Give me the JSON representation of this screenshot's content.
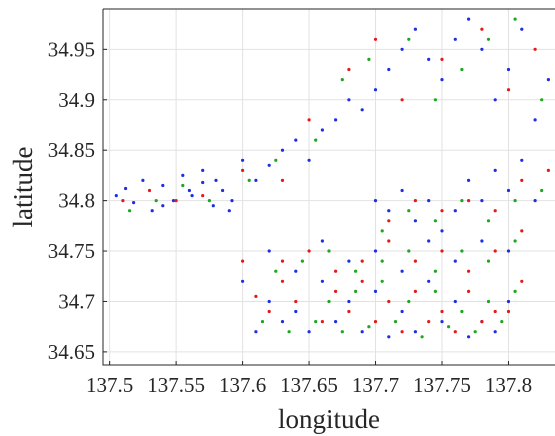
{
  "chart_data": {
    "type": "scatter",
    "title": "",
    "xlabel": "longitude",
    "ylabel": "latitude",
    "xlim": [
      137.495,
      137.835
    ],
    "ylim": [
      34.637,
      34.99
    ],
    "grid": true,
    "legend": "none",
    "x_ticks": [
      137.5,
      137.55,
      137.6,
      137.65,
      137.7,
      137.75,
      137.8
    ],
    "x_tick_labels": [
      "137.5",
      "137.55",
      "137.6",
      "137.65",
      "137.7",
      "137.75",
      "137.8"
    ],
    "y_ticks": [
      34.65,
      34.7,
      34.75,
      34.8,
      34.85,
      34.9,
      34.95
    ],
    "y_tick_labels": [
      "34.65",
      "34.7",
      "34.75",
      "34.8",
      "34.85",
      "34.9",
      "34.95"
    ],
    "series_colors": [
      "#1f2ee0",
      "#e31a1a",
      "#1fa51f"
    ],
    "series": [
      {
        "color": "#1f2ee0",
        "points": [
          [
            137.505,
            34.805
          ],
          [
            137.512,
            34.812
          ],
          [
            137.518,
            34.798
          ],
          [
            137.525,
            34.82
          ],
          [
            137.532,
            34.79
          ],
          [
            137.54,
            34.815
          ],
          [
            137.548,
            34.8
          ],
          [
            137.555,
            34.825
          ],
          [
            137.562,
            34.805
          ],
          [
            137.57,
            34.818
          ],
          [
            137.578,
            34.795
          ],
          [
            137.585,
            34.81
          ],
          [
            137.592,
            34.8
          ],
          [
            137.6,
            34.84
          ],
          [
            137.61,
            34.82
          ],
          [
            137.62,
            34.835
          ],
          [
            137.63,
            34.85
          ],
          [
            137.64,
            34.86
          ],
          [
            137.65,
            34.84
          ],
          [
            137.66,
            34.87
          ],
          [
            137.67,
            34.88
          ],
          [
            137.68,
            34.9
          ],
          [
            137.69,
            34.89
          ],
          [
            137.7,
            34.91
          ],
          [
            137.71,
            34.93
          ],
          [
            137.72,
            34.95
          ],
          [
            137.73,
            34.97
          ],
          [
            137.74,
            34.94
          ],
          [
            137.75,
            34.92
          ],
          [
            137.76,
            34.96
          ],
          [
            137.77,
            34.98
          ],
          [
            137.78,
            34.95
          ],
          [
            137.79,
            34.9
          ],
          [
            137.8,
            34.93
          ],
          [
            137.81,
            34.97
          ],
          [
            137.82,
            34.88
          ],
          [
            137.83,
            34.92
          ],
          [
            137.7,
            34.8
          ],
          [
            137.71,
            34.79
          ],
          [
            137.72,
            34.81
          ],
          [
            137.73,
            34.78
          ],
          [
            137.74,
            34.8
          ],
          [
            137.75,
            34.77
          ],
          [
            137.76,
            34.79
          ],
          [
            137.77,
            34.82
          ],
          [
            137.78,
            34.8
          ],
          [
            137.79,
            34.83
          ],
          [
            137.8,
            34.81
          ],
          [
            137.81,
            34.84
          ],
          [
            137.82,
            34.8
          ],
          [
            137.66,
            34.72
          ],
          [
            137.68,
            34.7
          ],
          [
            137.7,
            34.71
          ],
          [
            137.72,
            34.69
          ],
          [
            137.74,
            34.72
          ],
          [
            137.76,
            34.7
          ],
          [
            137.78,
            34.68
          ],
          [
            137.8,
            34.7
          ],
          [
            137.62,
            34.75
          ],
          [
            137.64,
            34.73
          ],
          [
            137.66,
            34.76
          ],
          [
            137.68,
            34.74
          ],
          [
            137.7,
            34.75
          ],
          [
            137.72,
            34.73
          ],
          [
            137.74,
            34.76
          ],
          [
            137.76,
            34.74
          ],
          [
            137.78,
            34.76
          ],
          [
            137.8,
            34.75
          ],
          [
            137.62,
            34.7
          ],
          [
            137.64,
            34.69
          ],
          [
            137.6,
            34.72
          ],
          [
            137.61,
            34.67
          ],
          [
            137.63,
            34.68
          ],
          [
            137.65,
            34.67
          ],
          [
            137.67,
            34.68
          ],
          [
            137.69,
            34.67
          ],
          [
            137.71,
            34.665
          ],
          [
            137.73,
            34.67
          ],
          [
            137.75,
            34.68
          ],
          [
            137.77,
            34.665
          ],
          [
            137.79,
            34.67
          ],
          [
            137.54,
            34.795
          ],
          [
            137.56,
            34.81
          ],
          [
            137.58,
            34.82
          ],
          [
            137.57,
            34.83
          ],
          [
            137.59,
            34.79
          ]
        ]
      },
      {
        "color": "#e31a1a",
        "points": [
          [
            137.51,
            34.8
          ],
          [
            137.53,
            34.81
          ],
          [
            137.55,
            34.8
          ],
          [
            137.57,
            34.805
          ],
          [
            137.6,
            34.83
          ],
          [
            137.63,
            34.82
          ],
          [
            137.65,
            34.88
          ],
          [
            137.68,
            34.93
          ],
          [
            137.7,
            34.96
          ],
          [
            137.72,
            34.9
          ],
          [
            137.75,
            34.94
          ],
          [
            137.78,
            34.97
          ],
          [
            137.8,
            34.91
          ],
          [
            137.82,
            34.95
          ],
          [
            137.71,
            34.78
          ],
          [
            137.73,
            34.8
          ],
          [
            137.75,
            34.79
          ],
          [
            137.77,
            34.8
          ],
          [
            137.79,
            34.79
          ],
          [
            137.81,
            34.82
          ],
          [
            137.83,
            34.83
          ],
          [
            137.67,
            34.71
          ],
          [
            137.69,
            34.72
          ],
          [
            137.71,
            34.7
          ],
          [
            137.73,
            34.71
          ],
          [
            137.75,
            34.69
          ],
          [
            137.77,
            34.71
          ],
          [
            137.79,
            34.69
          ],
          [
            137.81,
            34.72
          ],
          [
            137.63,
            34.74
          ],
          [
            137.65,
            34.75
          ],
          [
            137.67,
            34.73
          ],
          [
            137.69,
            34.74
          ],
          [
            137.71,
            34.76
          ],
          [
            137.73,
            34.74
          ],
          [
            137.75,
            34.75
          ],
          [
            137.77,
            34.73
          ],
          [
            137.79,
            34.75
          ],
          [
            137.81,
            34.77
          ],
          [
            137.62,
            34.69
          ],
          [
            137.64,
            34.7
          ],
          [
            137.66,
            34.68
          ],
          [
            137.68,
            34.69
          ],
          [
            137.7,
            34.68
          ],
          [
            137.72,
            34.67
          ],
          [
            137.74,
            34.68
          ],
          [
            137.76,
            34.67
          ],
          [
            137.78,
            34.68
          ],
          [
            137.8,
            34.69
          ],
          [
            137.61,
            34.705
          ],
          [
            137.63,
            34.72
          ],
          [
            137.6,
            34.74
          ]
        ]
      },
      {
        "color": "#1fa51f",
        "points": [
          [
            137.515,
            34.79
          ],
          [
            137.535,
            34.8
          ],
          [
            137.555,
            34.815
          ],
          [
            137.575,
            34.8
          ],
          [
            137.605,
            34.82
          ],
          [
            137.625,
            34.84
          ],
          [
            137.655,
            34.86
          ],
          [
            137.675,
            34.92
          ],
          [
            137.695,
            34.94
          ],
          [
            137.725,
            34.96
          ],
          [
            137.745,
            34.9
          ],
          [
            137.765,
            34.93
          ],
          [
            137.785,
            34.96
          ],
          [
            137.805,
            34.98
          ],
          [
            137.825,
            34.9
          ],
          [
            137.705,
            34.77
          ],
          [
            137.725,
            34.79
          ],
          [
            137.745,
            34.78
          ],
          [
            137.765,
            34.8
          ],
          [
            137.785,
            34.78
          ],
          [
            137.805,
            34.8
          ],
          [
            137.825,
            34.81
          ],
          [
            137.665,
            34.7
          ],
          [
            137.685,
            34.71
          ],
          [
            137.705,
            34.72
          ],
          [
            137.725,
            34.7
          ],
          [
            137.745,
            34.71
          ],
          [
            137.765,
            34.69
          ],
          [
            137.785,
            34.7
          ],
          [
            137.805,
            34.71
          ],
          [
            137.625,
            34.73
          ],
          [
            137.645,
            34.74
          ],
          [
            137.665,
            34.75
          ],
          [
            137.685,
            34.73
          ],
          [
            137.705,
            34.74
          ],
          [
            137.725,
            34.75
          ],
          [
            137.745,
            34.73
          ],
          [
            137.765,
            34.75
          ],
          [
            137.785,
            34.74
          ],
          [
            137.805,
            34.76
          ],
          [
            137.615,
            34.68
          ],
          [
            137.635,
            34.67
          ],
          [
            137.655,
            34.68
          ],
          [
            137.675,
            34.67
          ],
          [
            137.695,
            34.675
          ],
          [
            137.715,
            34.68
          ],
          [
            137.735,
            34.665
          ],
          [
            137.755,
            34.675
          ],
          [
            137.775,
            34.67
          ],
          [
            137.795,
            34.68
          ]
        ]
      }
    ]
  }
}
